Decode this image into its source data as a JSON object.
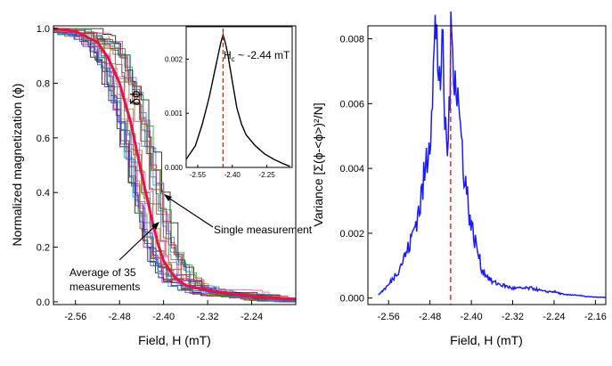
{
  "chart_data": [
    {
      "id": "left",
      "type": "line",
      "xlabel": "Field, H (mT)",
      "ylabel": "Normalized magnetization (ϕ)",
      "xlim": [
        -2.6,
        -2.16
      ],
      "ylim": [
        -0.01,
        1.01
      ],
      "xticks": [
        -2.56,
        -2.48,
        -2.4,
        -2.32,
        -2.24
      ],
      "xtick_labels": [
        "-2.56",
        "-2.48",
        "-2.40",
        "-2.32",
        "-2.24"
      ],
      "yticks": [
        0.0,
        0.2,
        0.4,
        0.6,
        0.8,
        1.0
      ],
      "ytick_labels": [
        "0.0",
        "0.2",
        "0.4",
        "0.6",
        "0.8",
        "1.0"
      ],
      "single_measurement_colors": [
        "#000000",
        "#1f3fd0",
        "#d01f1f",
        "#12a012",
        "#a000b0",
        "#0099cc",
        "#c08000",
        "#666666",
        "#ff44aa",
        "#008080",
        "#7a3d00",
        "#5555ff"
      ],
      "average_color": "#e8124a",
      "average_curve": {
        "x": [
          -2.6,
          -2.56,
          -2.52,
          -2.5,
          -2.48,
          -2.46,
          -2.44,
          -2.43,
          -2.42,
          -2.41,
          -2.4,
          -2.38,
          -2.36,
          -2.32,
          -2.28,
          -2.24,
          -2.2,
          -2.16
        ],
        "y": [
          1.0,
          0.99,
          0.95,
          0.89,
          0.8,
          0.66,
          0.47,
          0.38,
          0.29,
          0.21,
          0.15,
          0.09,
          0.06,
          0.04,
          0.03,
          0.02,
          0.015,
          0.01
        ]
      },
      "annotations": [
        {
          "label": "Single measurement"
        },
        {
          "label": "Average of 35",
          "label2": "measurements"
        }
      ],
      "inset": {
        "ylabel": "δϕ",
        "xlim": [
          -2.6,
          -2.14
        ],
        "ylim": [
          0,
          0.0026
        ],
        "xticks": [
          -2.55,
          -2.4,
          -2.25
        ],
        "xtick_labels": [
          "-2.55",
          "-2.40",
          "-2.25"
        ],
        "yticks": [
          0.0,
          0.001,
          0.002
        ],
        "ytick_labels": [
          "0.000",
          "0.001",
          "0.002"
        ],
        "x": [
          -2.6,
          -2.56,
          -2.53,
          -2.5,
          -2.48,
          -2.46,
          -2.45,
          -2.44,
          -2.43,
          -2.42,
          -2.4,
          -2.38,
          -2.36,
          -2.34,
          -2.3,
          -2.26,
          -2.22,
          -2.18,
          -2.15
        ],
        "y": [
          0.00015,
          0.0004,
          0.0008,
          0.0013,
          0.0017,
          0.0021,
          0.0023,
          0.00245,
          0.0023,
          0.0021,
          0.0016,
          0.0011,
          0.0008,
          0.0006,
          0.0004,
          0.00025,
          0.00015,
          7e-05,
          2e-05
        ],
        "critical_field": -2.44,
        "annotation": "H",
        "annotation_sub": "c",
        "annotation_rest": " ~ -2.44 mT"
      }
    },
    {
      "id": "right",
      "type": "line",
      "xlabel": "Field, H (mT)",
      "ylabel": "Variance [Σ(ϕ-<ϕ>)²/N]",
      "xlim": [
        -2.6,
        -2.14
      ],
      "ylim": [
        -0.0002,
        0.0084
      ],
      "xticks": [
        -2.56,
        -2.48,
        -2.4,
        -2.32,
        -2.24,
        -2.16
      ],
      "xtick_labels": [
        "-2.56",
        "-2.48",
        "-2.40",
        "-2.32",
        "-2.24",
        "-2.16"
      ],
      "yticks": [
        0.0,
        0.002,
        0.004,
        0.006,
        0.008
      ],
      "ytick_labels": [
        "0.000",
        "0.002",
        "0.004",
        "0.006",
        "0.008"
      ],
      "line_color": "#1a1aff",
      "critical_color": "#e02020",
      "critical_field": -2.44,
      "x": [
        -2.58,
        -2.56,
        -2.54,
        -2.52,
        -2.51,
        -2.5,
        -2.49,
        -2.48,
        -2.475,
        -2.47,
        -2.465,
        -2.46,
        -2.455,
        -2.45,
        -2.445,
        -2.44,
        -2.435,
        -2.43,
        -2.425,
        -2.42,
        -2.41,
        -2.4,
        -2.39,
        -2.38,
        -2.37,
        -2.36,
        -2.34,
        -2.32,
        -2.3,
        -2.28,
        -2.26,
        -2.24,
        -2.22,
        -2.2,
        -2.18,
        -2.16,
        -2.14
      ],
      "y": [
        0.0001,
        0.0004,
        0.0009,
        0.0016,
        0.0022,
        0.0028,
        0.0038,
        0.0052,
        0.0066,
        0.0081,
        0.0074,
        0.007,
        0.0072,
        0.005,
        0.0046,
        0.0075,
        0.0079,
        0.007,
        0.006,
        0.005,
        0.0034,
        0.0022,
        0.0016,
        0.0009,
        0.0007,
        0.0005,
        0.0004,
        0.0003,
        0.0003,
        0.0003,
        0.0002,
        0.0002,
        0.0001,
        0.0001,
        5e-05,
        3e-05,
        2e-05
      ]
    }
  ]
}
